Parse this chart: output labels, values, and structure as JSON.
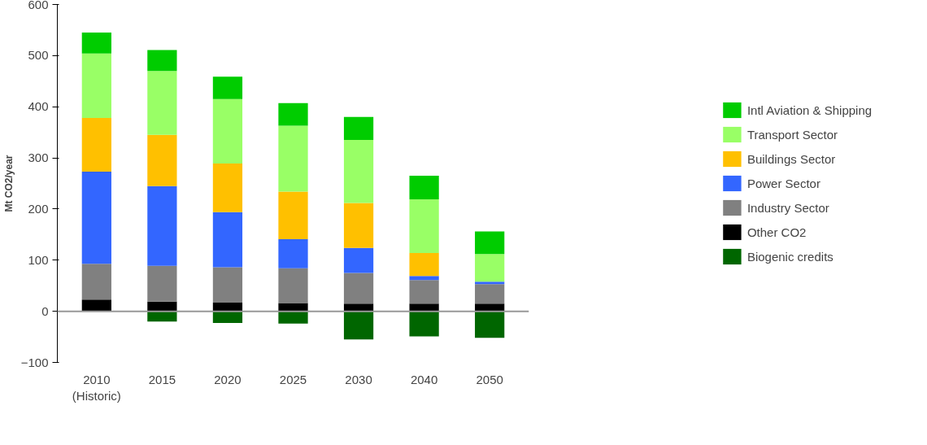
{
  "chart_data": {
    "type": "bar",
    "stacked": true,
    "ylabel": "Mt CO2/year",
    "categories": [
      "2010\n(Historic)",
      "2015",
      "2020",
      "2025",
      "2030",
      "2040",
      "2050"
    ],
    "series": [
      {
        "name": "Biogenic credits",
        "color": "#006600",
        "values": [
          0,
          -20,
          -23,
          -24,
          -55,
          -49,
          -52
        ]
      },
      {
        "name": "Other CO2",
        "color": "#000000",
        "values": [
          23,
          19,
          17,
          16,
          15,
          15,
          15
        ]
      },
      {
        "name": "Industry Sector",
        "color": "#808080",
        "values": [
          70,
          70,
          69,
          68,
          60,
          46,
          38
        ]
      },
      {
        "name": "Power Sector",
        "color": "#3366ff",
        "values": [
          180,
          156,
          108,
          57,
          49,
          8,
          5
        ]
      },
      {
        "name": "Buildings Sector",
        "color": "#ffc000",
        "values": [
          105,
          100,
          95,
          93,
          88,
          45,
          0
        ]
      },
      {
        "name": "Transport Sector",
        "color": "#99ff66",
        "values": [
          126,
          125,
          126,
          129,
          123,
          105,
          54
        ]
      },
      {
        "name": "Intl Aviation & Shipping",
        "color": "#00cc00",
        "values": [
          41,
          41,
          44,
          44,
          45,
          46,
          44
        ]
      }
    ],
    "ylim": [
      -100,
      600
    ],
    "yticks": [
      -100,
      0,
      100,
      200,
      300,
      400,
      500,
      600
    ],
    "ref_lines": [
      {
        "axis": "y",
        "value": 0,
        "color": "#999999"
      }
    ],
    "grid": false,
    "legend": "right"
  }
}
